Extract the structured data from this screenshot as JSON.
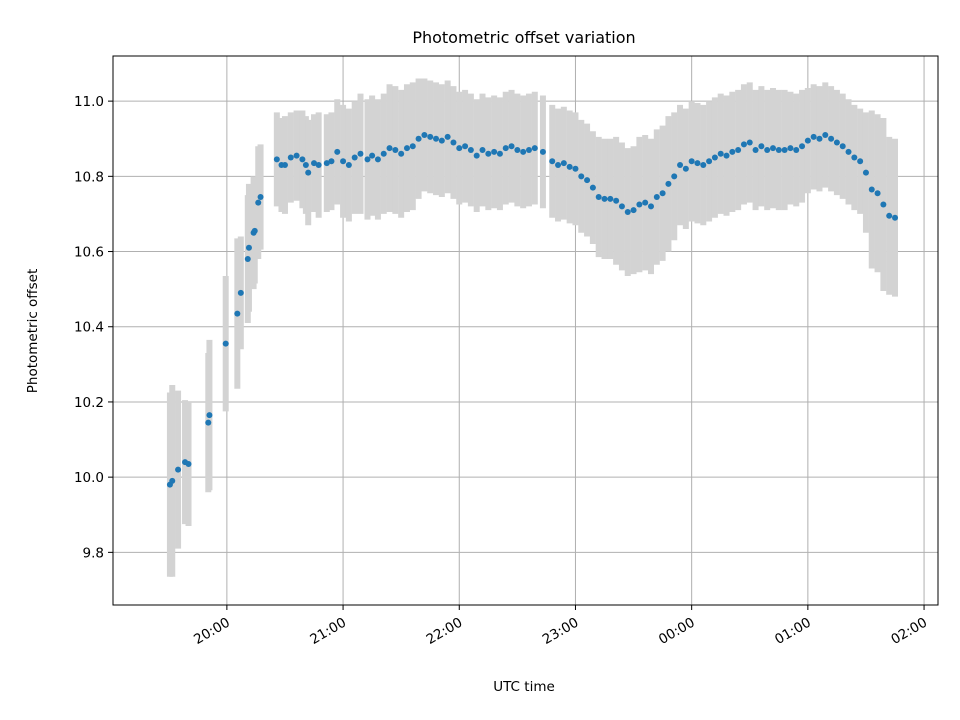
{
  "chart_data": {
    "type": "scatter",
    "title": "Photometric offset variation",
    "xlabel": "UTC time",
    "ylabel": "Photometric offset",
    "grid": true,
    "legend": "none",
    "x_unit": "UTC time (hours; 24 = 00:00, 26 = 02:00 next day)",
    "xlim": [
      19.02,
      26.12
    ],
    "ylim": [
      9.66,
      11.12
    ],
    "x_ticks": [
      20,
      21,
      22,
      23,
      24,
      25,
      26
    ],
    "x_tick_labels": [
      "20:00",
      "21:00",
      "22:00",
      "23:00",
      "00:00",
      "01:00",
      "02:00"
    ],
    "y_ticks": [
      9.8,
      10.0,
      10.2,
      10.4,
      10.6,
      10.8,
      11.0
    ],
    "y_tick_labels": [
      "9.8",
      "10.0",
      "10.2",
      "10.4",
      "10.6",
      "10.8",
      "11.0"
    ],
    "colors": {
      "points": "#1f77b4",
      "error_bars": "#d3d3d3"
    },
    "series": [
      {
        "columns": [
          "x",
          "y",
          "err"
        ],
        "points": [
          [
            19.51,
            9.98,
            0.245
          ],
          [
            19.53,
            9.99,
            0.255
          ],
          [
            19.58,
            10.02,
            0.21
          ],
          [
            19.64,
            10.04,
            0.165
          ],
          [
            19.67,
            10.035,
            0.165
          ],
          [
            19.84,
            10.145,
            0.185
          ],
          [
            19.85,
            10.165,
            0.2
          ],
          [
            19.99,
            10.355,
            0.18
          ],
          [
            20.09,
            10.435,
            0.2
          ],
          [
            20.12,
            10.49,
            0.15
          ],
          [
            20.18,
            10.58,
            0.17
          ],
          [
            20.19,
            10.61,
            0.17
          ],
          [
            20.23,
            10.65,
            0.15
          ],
          [
            20.24,
            10.655,
            0.14
          ],
          [
            20.27,
            10.73,
            0.15
          ],
          [
            20.29,
            10.745,
            0.14
          ],
          [
            20.43,
            10.845,
            0.125
          ],
          [
            20.47,
            10.83,
            0.125
          ],
          [
            20.5,
            10.83,
            0.13
          ],
          [
            20.55,
            10.85,
            0.12
          ],
          [
            20.6,
            10.855,
            0.12
          ],
          [
            20.65,
            10.845,
            0.13
          ],
          [
            20.68,
            10.83,
            0.13
          ],
          [
            20.7,
            10.81,
            0.14
          ],
          [
            20.75,
            10.835,
            0.13
          ],
          [
            20.79,
            10.83,
            0.14
          ],
          [
            20.86,
            10.835,
            0.13
          ],
          [
            20.9,
            10.84,
            0.13
          ],
          [
            20.95,
            10.865,
            0.14
          ],
          [
            21.0,
            10.84,
            0.15
          ],
          [
            21.05,
            10.83,
            0.15
          ],
          [
            21.1,
            10.85,
            0.15
          ],
          [
            21.15,
            10.86,
            0.16
          ],
          [
            21.21,
            10.845,
            0.16
          ],
          [
            21.25,
            10.855,
            0.16
          ],
          [
            21.3,
            10.845,
            0.16
          ],
          [
            21.35,
            10.86,
            0.16
          ],
          [
            21.4,
            10.875,
            0.17
          ],
          [
            21.45,
            10.87,
            0.17
          ],
          [
            21.5,
            10.86,
            0.17
          ],
          [
            21.55,
            10.875,
            0.17
          ],
          [
            21.6,
            10.88,
            0.17
          ],
          [
            21.65,
            10.9,
            0.16
          ],
          [
            21.7,
            10.91,
            0.15
          ],
          [
            21.75,
            10.905,
            0.15
          ],
          [
            21.8,
            10.9,
            0.15
          ],
          [
            21.85,
            10.895,
            0.15
          ],
          [
            21.9,
            10.905,
            0.15
          ],
          [
            21.95,
            10.89,
            0.15
          ],
          [
            22.0,
            10.875,
            0.15
          ],
          [
            22.05,
            10.88,
            0.15
          ],
          [
            22.1,
            10.87,
            0.15
          ],
          [
            22.15,
            10.855,
            0.15
          ],
          [
            22.2,
            10.87,
            0.15
          ],
          [
            22.25,
            10.86,
            0.15
          ],
          [
            22.3,
            10.865,
            0.15
          ],
          [
            22.35,
            10.86,
            0.15
          ],
          [
            22.4,
            10.875,
            0.15
          ],
          [
            22.45,
            10.88,
            0.15
          ],
          [
            22.5,
            10.87,
            0.15
          ],
          [
            22.55,
            10.865,
            0.15
          ],
          [
            22.6,
            10.87,
            0.15
          ],
          [
            22.65,
            10.875,
            0.15
          ],
          [
            22.72,
            10.865,
            0.15
          ],
          [
            22.8,
            10.84,
            0.15
          ],
          [
            22.85,
            10.83,
            0.15
          ],
          [
            22.9,
            10.835,
            0.15
          ],
          [
            22.95,
            10.825,
            0.15
          ],
          [
            23.0,
            10.82,
            0.15
          ],
          [
            23.05,
            10.8,
            0.15
          ],
          [
            23.1,
            10.79,
            0.15
          ],
          [
            23.15,
            10.77,
            0.15
          ],
          [
            23.2,
            10.745,
            0.16
          ],
          [
            23.25,
            10.74,
            0.16
          ],
          [
            23.3,
            10.74,
            0.16
          ],
          [
            23.35,
            10.735,
            0.17
          ],
          [
            23.4,
            10.72,
            0.17
          ],
          [
            23.45,
            10.705,
            0.17
          ],
          [
            23.5,
            10.71,
            0.17
          ],
          [
            23.55,
            10.725,
            0.18
          ],
          [
            23.6,
            10.73,
            0.18
          ],
          [
            23.65,
            10.72,
            0.18
          ],
          [
            23.7,
            10.745,
            0.18
          ],
          [
            23.75,
            10.755,
            0.18
          ],
          [
            23.8,
            10.78,
            0.18
          ],
          [
            23.85,
            10.8,
            0.17
          ],
          [
            23.9,
            10.83,
            0.16
          ],
          [
            23.95,
            10.82,
            0.16
          ],
          [
            24.0,
            10.84,
            0.16
          ],
          [
            24.05,
            10.835,
            0.16
          ],
          [
            24.1,
            10.83,
            0.16
          ],
          [
            24.15,
            10.84,
            0.16
          ],
          [
            24.2,
            10.85,
            0.16
          ],
          [
            24.25,
            10.86,
            0.16
          ],
          [
            24.3,
            10.855,
            0.16
          ],
          [
            24.35,
            10.865,
            0.16
          ],
          [
            24.4,
            10.87,
            0.16
          ],
          [
            24.45,
            10.885,
            0.16
          ],
          [
            24.5,
            10.89,
            0.16
          ],
          [
            24.55,
            10.87,
            0.16
          ],
          [
            24.6,
            10.88,
            0.16
          ],
          [
            24.65,
            10.87,
            0.16
          ],
          [
            24.7,
            10.875,
            0.16
          ],
          [
            24.75,
            10.87,
            0.16
          ],
          [
            24.8,
            10.87,
            0.16
          ],
          [
            24.85,
            10.875,
            0.15
          ],
          [
            24.9,
            10.87,
            0.15
          ],
          [
            24.95,
            10.88,
            0.15
          ],
          [
            25.0,
            10.895,
            0.14
          ],
          [
            25.05,
            10.905,
            0.14
          ],
          [
            25.1,
            10.9,
            0.14
          ],
          [
            25.15,
            10.91,
            0.14
          ],
          [
            25.2,
            10.9,
            0.14
          ],
          [
            25.25,
            10.89,
            0.14
          ],
          [
            25.3,
            10.88,
            0.14
          ],
          [
            25.35,
            10.865,
            0.14
          ],
          [
            25.4,
            10.85,
            0.14
          ],
          [
            25.45,
            10.84,
            0.14
          ],
          [
            25.5,
            10.81,
            0.16
          ],
          [
            25.55,
            10.765,
            0.21
          ],
          [
            25.6,
            10.755,
            0.21
          ],
          [
            25.65,
            10.725,
            0.23
          ],
          [
            25.7,
            10.695,
            0.21
          ],
          [
            25.75,
            10.69,
            0.21
          ]
        ]
      }
    ]
  }
}
